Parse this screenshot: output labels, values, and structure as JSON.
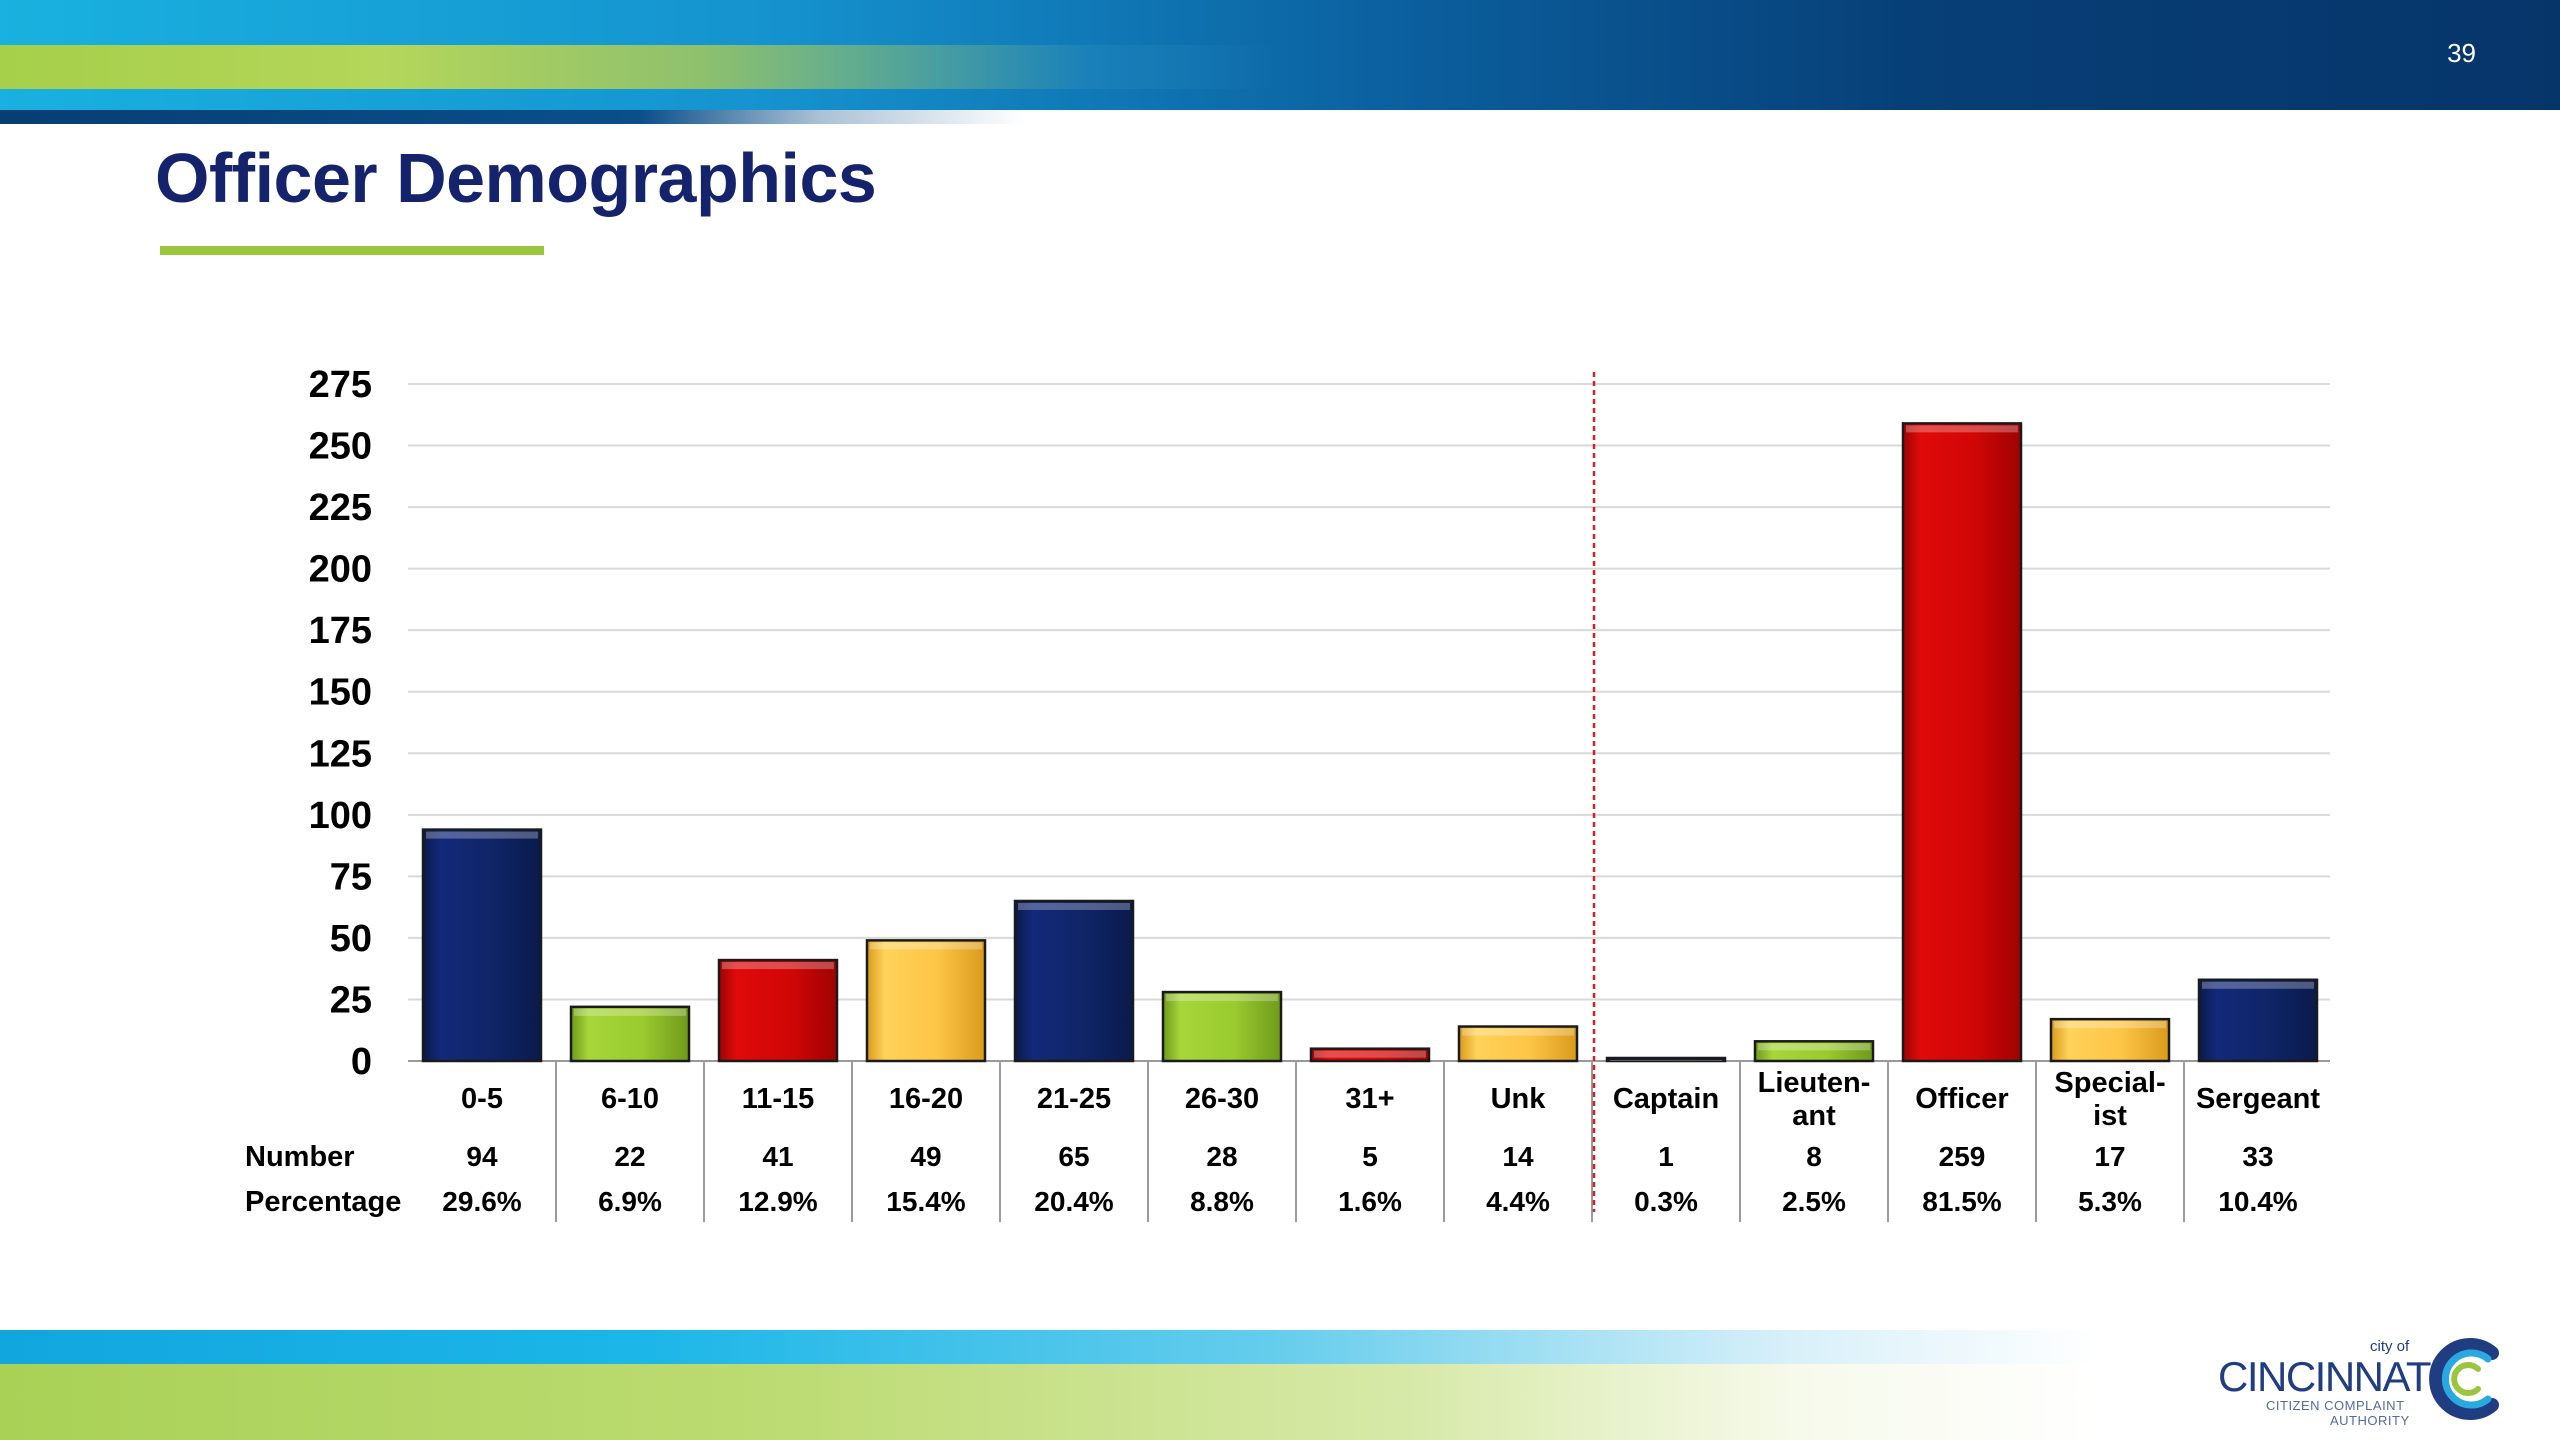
{
  "page": {
    "number": "39",
    "title": "Officer Demographics"
  },
  "colors": {
    "navy": "#0f2566",
    "green": "#9acb2e",
    "red": "#d10606",
    "yellow": "#fdc545",
    "title": "#14236b",
    "accent_line": "#9bc53d",
    "divider": "#d62020"
  },
  "chart_data": {
    "type": "bar",
    "title": "",
    "xlabel": "",
    "ylabel": "",
    "ylim": [
      0,
      275
    ],
    "yticks": [
      "0",
      "25",
      "50",
      "75",
      "100",
      "125",
      "150",
      "175",
      "200",
      "225",
      "250",
      "275"
    ],
    "grid": true,
    "categories": [
      "0-5",
      "6-10",
      "11-15",
      "16-20",
      "21-25",
      "26-30",
      "31+",
      "Unk",
      "Captain",
      "Lieuten-ant",
      "Officer",
      "Special-ist",
      "Sergeant"
    ],
    "category_lines": [
      [
        "0-5"
      ],
      [
        "6-10"
      ],
      [
        "11-15"
      ],
      [
        "16-20"
      ],
      [
        "21-25"
      ],
      [
        "26-30"
      ],
      [
        "31+"
      ],
      [
        "Unk"
      ],
      [
        "Captain"
      ],
      [
        "Lieuten-",
        "ant"
      ],
      [
        "Officer"
      ],
      [
        "Special-",
        "ist"
      ],
      [
        "Sergeant"
      ]
    ],
    "values": [
      94,
      22,
      41,
      49,
      65,
      28,
      5,
      14,
      1,
      8,
      259,
      17,
      33
    ],
    "bar_colors": [
      "navy",
      "green",
      "red",
      "yellow",
      "navy",
      "green",
      "red",
      "yellow",
      "navy",
      "green",
      "red",
      "yellow",
      "navy"
    ],
    "divider_after_index": 7,
    "table": {
      "row_headers": [
        "Number",
        "Percentage"
      ],
      "number": [
        "94",
        "22",
        "41",
        "49",
        "65",
        "28",
        "5",
        "14",
        "1",
        "8",
        "259",
        "17",
        "33"
      ],
      "percentage": [
        "29.6%",
        "6.9%",
        "12.9%",
        "15.4%",
        "20.4%",
        "8.8%",
        "1.6%",
        "4.4%",
        "0.3%",
        "2.5%",
        "81.5%",
        "5.3%",
        "10.4%"
      ]
    }
  },
  "logo": {
    "city_of": "city of",
    "name": "CINCINNATI",
    "sub_line1": "CITIZEN COMPLAINT",
    "sub_line2": "AUTHORITY"
  }
}
